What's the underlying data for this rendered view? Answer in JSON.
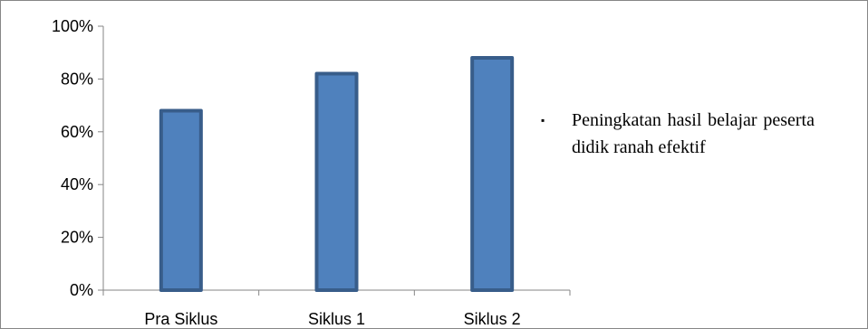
{
  "chart_data": {
    "type": "bar",
    "categories": [
      "Pra Siklus",
      "Siklus 1",
      "Siklus 2"
    ],
    "series": [
      {
        "name": "Peningkatan hasil belajar peserta didik ranah efektif",
        "values": [
          68,
          82,
          88
        ],
        "color": "#4f81bd",
        "border_color": "#385d8a"
      }
    ],
    "ylim": [
      0,
      100
    ],
    "yticks": [
      0,
      20,
      40,
      60,
      80,
      100
    ],
    "ytick_suffix": "%",
    "legend_placement": "right",
    "legend_marker": "▪",
    "grid": false
  }
}
